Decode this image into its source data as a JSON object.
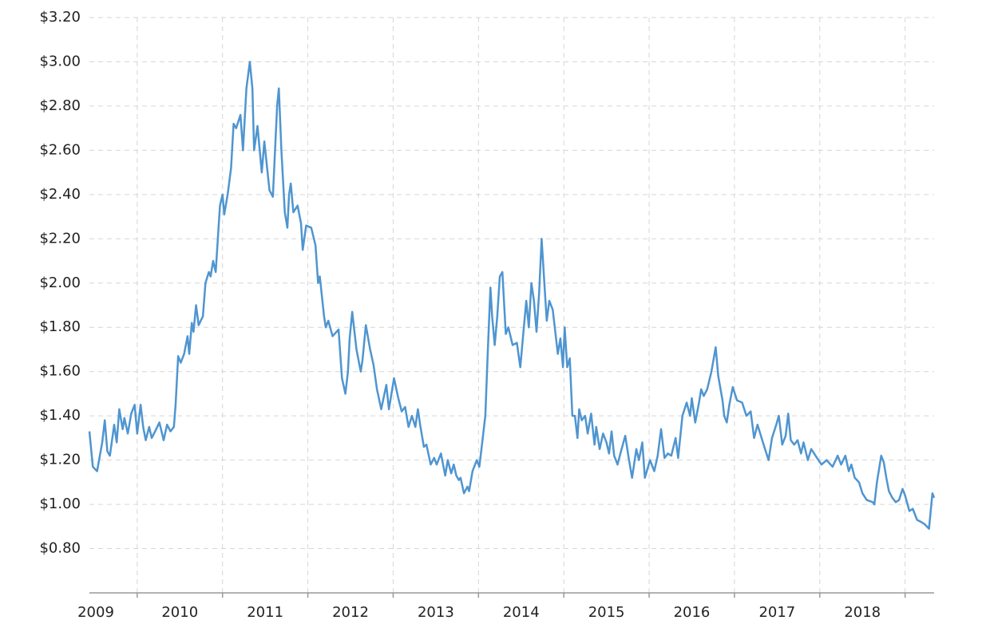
{
  "chart_data": {
    "type": "line",
    "color": "#4f95d0",
    "grid": true,
    "xlim": [
      2009.44,
      2019.34
    ],
    "xgrid": [
      2010,
      2011,
      2012,
      2013,
      2014,
      2015,
      2016,
      2017,
      2018,
      2019
    ],
    "xticks": [
      {
        "value": 2009.5,
        "label": "2009"
      },
      {
        "value": 2010.5,
        "label": "2010"
      },
      {
        "value": 2011.5,
        "label": "2011"
      },
      {
        "value": 2012.5,
        "label": "2012"
      },
      {
        "value": 2013.5,
        "label": "2013"
      },
      {
        "value": 2014.5,
        "label": "2014"
      },
      {
        "value": 2015.5,
        "label": "2015"
      },
      {
        "value": 2016.5,
        "label": "2016"
      },
      {
        "value": 2017.5,
        "label": "2017"
      },
      {
        "value": 2018.5,
        "label": "2018"
      }
    ],
    "ylim": [
      0.6,
      3.2
    ],
    "yticks": [
      {
        "value": 0.8,
        "label": "$0.80"
      },
      {
        "value": 1.0,
        "label": "$1.00"
      },
      {
        "value": 1.2,
        "label": "$1.20"
      },
      {
        "value": 1.4,
        "label": "$1.40"
      },
      {
        "value": 1.6,
        "label": "$1.60"
      },
      {
        "value": 1.8,
        "label": "$1.80"
      },
      {
        "value": 2.0,
        "label": "$2.00"
      },
      {
        "value": 2.2,
        "label": "$2.20"
      },
      {
        "value": 2.4,
        "label": "$2.40"
      },
      {
        "value": 2.6,
        "label": "$2.60"
      },
      {
        "value": 2.8,
        "label": "$2.80"
      },
      {
        "value": 3.0,
        "label": "$3.00"
      },
      {
        "value": 3.2,
        "label": "$3.20"
      }
    ],
    "x": [
      2009.44,
      2009.48,
      2009.53,
      2009.59,
      2009.62,
      2009.65,
      2009.68,
      2009.73,
      2009.76,
      2009.79,
      2009.83,
      2009.85,
      2009.89,
      2009.93,
      2009.97,
      2010.0,
      2010.04,
      2010.07,
      2010.1,
      2010.14,
      2010.17,
      2010.21,
      2010.26,
      2010.31,
      2010.35,
      2010.39,
      2010.43,
      2010.45,
      2010.48,
      2010.51,
      2010.55,
      2010.59,
      2010.61,
      2010.64,
      2010.66,
      2010.69,
      2010.72,
      2010.77,
      2010.8,
      2010.84,
      2010.86,
      2010.89,
      2010.92,
      2010.97,
      2011.0,
      2011.02,
      2011.06,
      2011.1,
      2011.13,
      2011.16,
      2011.21,
      2011.24,
      2011.28,
      2011.32,
      2011.35,
      2011.37,
      2011.41,
      2011.46,
      2011.49,
      2011.55,
      2011.59,
      2011.64,
      2011.66,
      2011.69,
      2011.73,
      2011.76,
      2011.78,
      2011.8,
      2011.83,
      2011.88,
      2011.92,
      2011.94,
      2011.98,
      2012.04,
      2012.09,
      2012.12,
      2012.14,
      2012.19,
      2012.21,
      2012.24,
      2012.29,
      2012.36,
      2012.4,
      2012.44,
      2012.47,
      2012.49,
      2012.52,
      2012.57,
      2012.62,
      2012.64,
      2012.68,
      2012.73,
      2012.77,
      2012.81,
      2012.86,
      2012.92,
      2012.95,
      2012.98,
      2013.01,
      2013.06,
      2013.1,
      2013.14,
      2013.18,
      2013.22,
      2013.26,
      2013.29,
      2013.32,
      2013.36,
      2013.39,
      2013.44,
      2013.48,
      2013.51,
      2013.56,
      2013.61,
      2013.64,
      2013.68,
      2013.71,
      2013.74,
      2013.77,
      2013.79,
      2013.83,
      2013.87,
      2013.89,
      2013.93,
      2013.94,
      2013.98,
      2014.01,
      2014.05,
      2014.08,
      2014.11,
      2014.14,
      2014.16,
      2014.19,
      2014.22,
      2014.25,
      2014.28,
      2014.32,
      2014.35,
      2014.4,
      2014.45,
      2014.49,
      2014.52,
      2014.56,
      2014.59,
      2014.62,
      2014.65,
      2014.68,
      2014.71,
      2014.74,
      2014.78,
      2014.8,
      2014.83,
      2014.87,
      2014.93,
      2014.96,
      2014.99,
      2015.01,
      2015.04,
      2015.07,
      2015.1,
      2015.13,
      2015.16,
      2015.18,
      2015.21,
      2015.25,
      2015.28,
      2015.32,
      2015.36,
      2015.38,
      2015.42,
      2015.46,
      2015.5,
      2015.53,
      2015.56,
      2015.59,
      2015.63,
      2015.67,
      2015.72,
      2015.76,
      2015.8,
      2015.85,
      2015.88,
      2015.92,
      2015.95,
      2016.01,
      2016.06,
      2016.1,
      2016.14,
      2016.18,
      2016.22,
      2016.26,
      2016.31,
      2016.34,
      2016.39,
      2016.44,
      2016.48,
      2016.5,
      2016.54,
      2016.58,
      2016.61,
      2016.64,
      2016.68,
      2016.73,
      2016.78,
      2016.81,
      2016.86,
      2016.88,
      2016.91,
      2016.94,
      2016.98,
      2017.03,
      2017.09,
      2017.14,
      2017.19,
      2017.23,
      2017.27,
      2017.35,
      2017.4,
      2017.44,
      2017.49,
      2017.52,
      2017.56,
      2017.6,
      2017.63,
      2017.66,
      2017.7,
      2017.74,
      2017.78,
      2017.81,
      2017.86,
      2017.9,
      2017.95,
      2018.02,
      2018.08,
      2018.15,
      2018.21,
      2018.25,
      2018.3,
      2018.34,
      2018.37,
      2018.41,
      2018.46,
      2018.5,
      2018.55,
      2018.62,
      2018.64,
      2018.67,
      2018.72,
      2018.75,
      2018.78,
      2018.81,
      2018.85,
      2018.89,
      2018.93,
      2018.97,
      2019.0,
      2019.05,
      2019.09,
      2019.14,
      2019.19,
      2019.23,
      2019.28,
      2019.32,
      2019.34
    ],
    "values": [
      1.33,
      1.17,
      1.15,
      1.28,
      1.38,
      1.24,
      1.22,
      1.36,
      1.28,
      1.43,
      1.34,
      1.39,
      1.32,
      1.41,
      1.45,
      1.32,
      1.45,
      1.35,
      1.29,
      1.35,
      1.3,
      1.33,
      1.37,
      1.29,
      1.36,
      1.33,
      1.35,
      1.45,
      1.67,
      1.64,
      1.68,
      1.76,
      1.68,
      1.82,
      1.78,
      1.9,
      1.81,
      1.85,
      2.0,
      2.05,
      2.03,
      2.1,
      2.05,
      2.35,
      2.4,
      2.31,
      2.4,
      2.52,
      2.72,
      2.7,
      2.76,
      2.6,
      2.88,
      3.0,
      2.88,
      2.6,
      2.71,
      2.5,
      2.64,
      2.42,
      2.39,
      2.8,
      2.88,
      2.6,
      2.32,
      2.25,
      2.4,
      2.45,
      2.32,
      2.35,
      2.27,
      2.15,
      2.26,
      2.25,
      2.17,
      2.0,
      2.03,
      1.85,
      1.8,
      1.83,
      1.76,
      1.79,
      1.57,
      1.5,
      1.6,
      1.75,
      1.87,
      1.7,
      1.6,
      1.65,
      1.81,
      1.7,
      1.63,
      1.52,
      1.43,
      1.54,
      1.43,
      1.5,
      1.57,
      1.48,
      1.42,
      1.44,
      1.35,
      1.4,
      1.35,
      1.43,
      1.35,
      1.26,
      1.27,
      1.18,
      1.21,
      1.18,
      1.23,
      1.13,
      1.2,
      1.14,
      1.18,
      1.13,
      1.11,
      1.12,
      1.05,
      1.08,
      1.06,
      1.15,
      1.16,
      1.2,
      1.17,
      1.3,
      1.4,
      1.7,
      1.98,
      1.85,
      1.72,
      1.85,
      2.03,
      2.05,
      1.77,
      1.8,
      1.72,
      1.73,
      1.62,
      1.75,
      1.92,
      1.8,
      2.0,
      1.92,
      1.78,
      1.95,
      2.2,
      1.95,
      1.83,
      1.92,
      1.88,
      1.68,
      1.75,
      1.62,
      1.8,
      1.62,
      1.66,
      1.4,
      1.4,
      1.3,
      1.43,
      1.38,
      1.4,
      1.32,
      1.41,
      1.27,
      1.35,
      1.25,
      1.32,
      1.28,
      1.23,
      1.33,
      1.22,
      1.18,
      1.24,
      1.31,
      1.21,
      1.12,
      1.25,
      1.2,
      1.28,
      1.12,
      1.2,
      1.15,
      1.22,
      1.34,
      1.21,
      1.23,
      1.22,
      1.3,
      1.21,
      1.4,
      1.46,
      1.4,
      1.48,
      1.37,
      1.45,
      1.52,
      1.49,
      1.52,
      1.6,
      1.71,
      1.58,
      1.47,
      1.4,
      1.37,
      1.45,
      1.53,
      1.47,
      1.46,
      1.4,
      1.42,
      1.3,
      1.36,
      1.26,
      1.2,
      1.3,
      1.36,
      1.4,
      1.27,
      1.31,
      1.41,
      1.29,
      1.27,
      1.29,
      1.23,
      1.28,
      1.2,
      1.25,
      1.22,
      1.18,
      1.2,
      1.17,
      1.22,
      1.18,
      1.22,
      1.15,
      1.18,
      1.12,
      1.1,
      1.05,
      1.02,
      1.01,
      1.0,
      1.1,
      1.22,
      1.19,
      1.12,
      1.06,
      1.03,
      1.01,
      1.02,
      1.07,
      1.04,
      0.97,
      0.98,
      0.93,
      0.92,
      0.91,
      0.89,
      1.05,
      1.03
    ]
  }
}
